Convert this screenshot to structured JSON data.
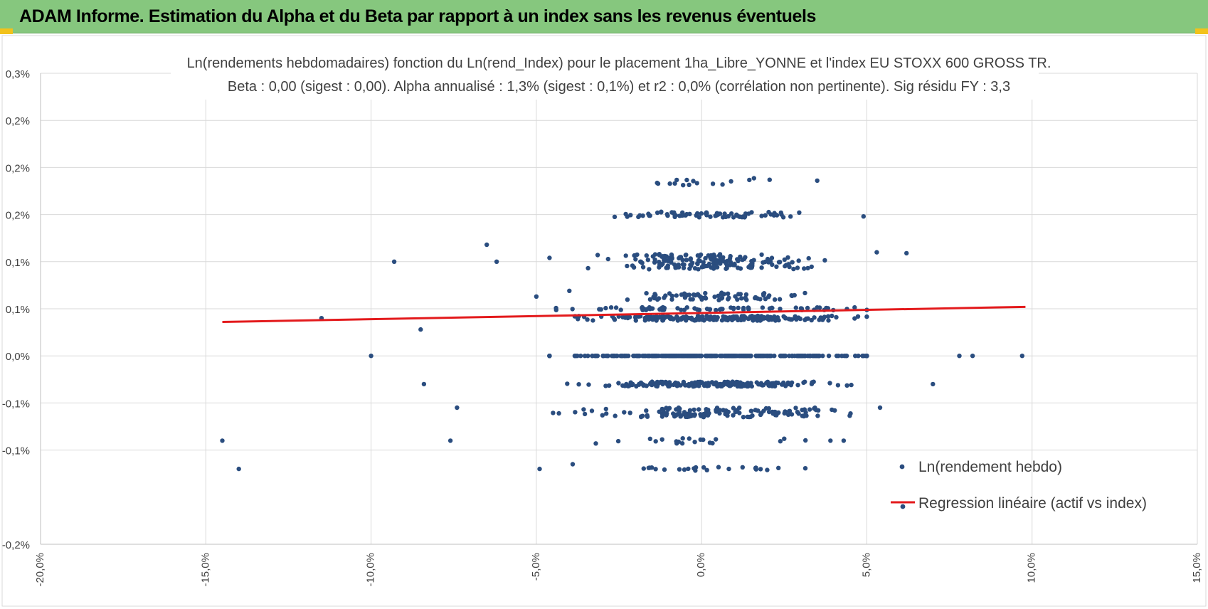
{
  "header": {
    "title": "ADAM Informe. Estimation du Alpha et du Beta par rapport à un index sans les revenus éventuels"
  },
  "chart_data": {
    "type": "scatter",
    "title": "Ln(rendements hebdomadaires) fonction du Ln(rend_Index) pour le placement 1ha_Libre_YONNE et l'index EU STOXX 600 GROSS TR.",
    "subtitle": "Beta : 0,00 (sigest : 0,00). Alpha annualisé : 1,3% (sigest : 0,1%) et r2 : 0,0% (corrélation non pertinente). Sig résidu FY : 3,3",
    "xlabel": "",
    "ylabel": "",
    "xlim": [
      -20,
      15
    ],
    "ylim": [
      -0.2,
      0.3
    ],
    "x_ticks": [
      -20,
      -15,
      -10,
      -5,
      0,
      5,
      10,
      15
    ],
    "x_tick_labels": [
      "-20,0%",
      "-15,0%",
      "-10,0%",
      "-5,0%",
      "0,0%",
      "5,0%",
      "10,0%",
      "15,0%"
    ],
    "y_ticks": [
      -0.2,
      -0.1,
      -0.05,
      0,
      0.05,
      0.1,
      0.15,
      0.2,
      0.25,
      0.3
    ],
    "y_tick_labels": [
      "-0,2%",
      "-0,1%",
      "-0,1%",
      "0,0%",
      "0,1%",
      "0,1%",
      "0,2%",
      "0,2%",
      "0,2%",
      "0,3%"
    ],
    "grid": true,
    "legend_position": "bottom-right",
    "series": [
      {
        "name": "Ln(rendement hebdo)",
        "kind": "scatter",
        "color": "#2a4d7f",
        "bands": [
          {
            "y": 0.0,
            "count": 300,
            "x_sd": 2.2,
            "y_jitter": 0.0
          },
          {
            "y": 0.04,
            "count": 200,
            "x_sd": 1.9,
            "y_jitter": 0.0025
          },
          {
            "y": 0.05,
            "count": 70,
            "x_sd": 2.3,
            "y_jitter": 0.0015
          },
          {
            "y": -0.03,
            "count": 200,
            "x_sd": 1.8,
            "y_jitter": 0.0025
          },
          {
            "y": -0.06,
            "count": 140,
            "x_sd": 2.0,
            "y_jitter": 0.005
          },
          {
            "y": 0.1,
            "count": 170,
            "x_sd": 1.5,
            "y_jitter": 0.008
          },
          {
            "y": 0.063,
            "count": 70,
            "x_sd": 1.2,
            "y_jitter": 0.004
          },
          {
            "y": 0.15,
            "count": 70,
            "x_sd": 1.3,
            "y_jitter": 0.003
          },
          {
            "y": 0.185,
            "count": 16,
            "x_sd": 1.0,
            "y_jitter": 0.004
          },
          {
            "y": -0.09,
            "count": 18,
            "x_sd": 1.5,
            "y_jitter": 0.003
          },
          {
            "y": -0.12,
            "count": 24,
            "x_sd": 1.4,
            "y_jitter": 0.002
          }
        ],
        "outliers": [
          {
            "x": -14.5,
            "y": -0.09
          },
          {
            "x": -14.0,
            "y": -0.12
          },
          {
            "x": -11.5,
            "y": 0.04
          },
          {
            "x": -10.0,
            "y": 0.0
          },
          {
            "x": -9.3,
            "y": 0.1
          },
          {
            "x": -8.5,
            "y": 0.028
          },
          {
            "x": -8.4,
            "y": -0.03
          },
          {
            "x": -7.6,
            "y": -0.09
          },
          {
            "x": -7.4,
            "y": -0.055
          },
          {
            "x": -6.5,
            "y": 0.118
          },
          {
            "x": -6.2,
            "y": 0.1
          },
          {
            "x": -5.0,
            "y": 0.063
          },
          {
            "x": -4.9,
            "y": -0.12
          },
          {
            "x": -4.6,
            "y": 0.104
          },
          {
            "x": -4.0,
            "y": 0.069
          },
          {
            "x": -3.9,
            "y": -0.115
          },
          {
            "x": -3.2,
            "y": -0.093
          },
          {
            "x": 3.5,
            "y": 0.186
          },
          {
            "x": 4.9,
            "y": 0.148
          },
          {
            "x": 5.3,
            "y": 0.11
          },
          {
            "x": 5.4,
            "y": -0.055
          },
          {
            "x": 6.2,
            "y": 0.109
          },
          {
            "x": 7.0,
            "y": -0.03
          },
          {
            "x": 7.8,
            "y": 0.0
          },
          {
            "x": 8.2,
            "y": 0.0
          },
          {
            "x": 9.7,
            "y": 0.0
          },
          {
            "x": 4.3,
            "y": -0.09
          },
          {
            "x": 3.9,
            "y": -0.09
          },
          {
            "x": 2.5,
            "y": -0.088
          }
        ]
      },
      {
        "name": "Regression linéaire (actif vs index)",
        "kind": "line",
        "color": "#e31a1c",
        "x": [
          -14.5,
          9.8
        ],
        "y": [
          0.036,
          0.052
        ]
      }
    ]
  }
}
